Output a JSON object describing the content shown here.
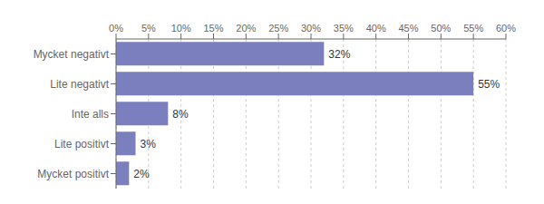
{
  "chart_data": {
    "type": "bar",
    "orientation": "horizontal",
    "categories": [
      "Mycket negativt",
      "Lite negativt",
      "Inte alls",
      "Lite positivt",
      "Mycket positivt"
    ],
    "values": [
      32,
      55,
      8,
      3,
      2
    ],
    "value_labels": [
      "32%",
      "55%",
      "8%",
      "3%",
      "2%"
    ],
    "data_labels": true,
    "color": "#7b7fbe",
    "xlim": [
      0,
      60
    ],
    "xticks": [
      {
        "value": 0,
        "label": "0%"
      },
      {
        "value": 5,
        "label": "5%"
      },
      {
        "value": 10,
        "label": "10%"
      },
      {
        "value": 15,
        "label": "15%"
      },
      {
        "value": 20,
        "label": "20%"
      },
      {
        "value": 25,
        "label": "25%"
      },
      {
        "value": 30,
        "label": "30%"
      },
      {
        "value": 35,
        "label": "35%"
      },
      {
        "value": 40,
        "label": "40%"
      },
      {
        "value": 45,
        "label": "45%"
      },
      {
        "value": 50,
        "label": "50%"
      },
      {
        "value": 55,
        "label": "55%"
      },
      {
        "value": 60,
        "label": "60%"
      }
    ],
    "grid": true
  }
}
